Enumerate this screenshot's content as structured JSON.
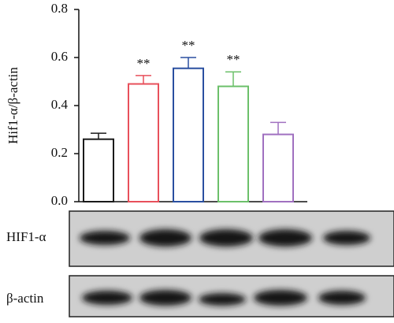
{
  "chart_data": {
    "type": "bar",
    "y_label": "Hif1-α/β-actin",
    "categories": [
      null,
      null,
      null,
      null,
      null
    ],
    "values": [
      0.26,
      0.49,
      0.555,
      0.48,
      0.28
    ],
    "errors": [
      0.025,
      0.035,
      0.045,
      0.06,
      0.05
    ],
    "colors": [
      "#1a1a1a",
      "#e8505b",
      "#2a4fa0",
      "#6cc06a",
      "#a070c0"
    ],
    "significance": [
      null,
      "**",
      "**",
      "**",
      null
    ],
    "ylim": [
      0,
      0.8
    ],
    "yticks": [
      {
        "value": 0,
        "label": "0.0"
      },
      0.2,
      0.4,
      0.6,
      0.8
    ]
  },
  "blot": {
    "rows": [
      "HIF1-α",
      "β-actin"
    ]
  }
}
